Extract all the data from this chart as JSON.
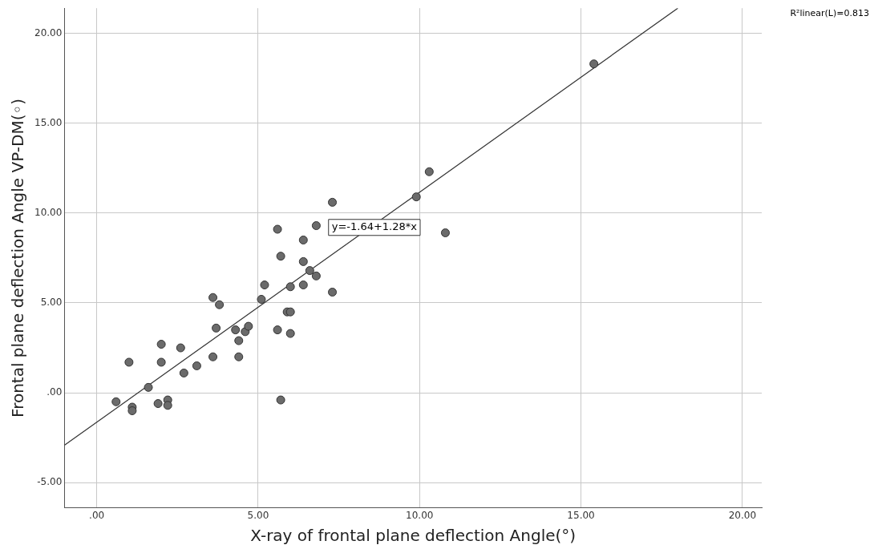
{
  "chart_data": {
    "type": "scatter",
    "xlabel": "X-ray of frontal plane deflection Angle(°)",
    "ylabel": "Frontal plane deflection Angle VP-DM(◦)",
    "series": [
      {
        "color": "#6b6b6b",
        "x": [
          0.6,
          1.1,
          1.1,
          1.0,
          1.6,
          1.9,
          2.2,
          2.2,
          2.0,
          2.0,
          2.6,
          2.7,
          3.1,
          3.6,
          3.6,
          3.7,
          3.8,
          4.3,
          4.4,
          4.4,
          4.6,
          4.7,
          5.1,
          5.2,
          5.6,
          5.7,
          5.6,
          5.7,
          5.9,
          6.0,
          6.0,
          6.0,
          6.4,
          6.4,
          6.4,
          6.6,
          6.8,
          6.8,
          7.3,
          7.3,
          9.9,
          10.3,
          10.8,
          15.4
        ],
        "values": [
          -0.5,
          -0.8,
          -1.0,
          1.7,
          0.3,
          -0.6,
          -0.4,
          -0.7,
          2.7,
          1.7,
          2.5,
          1.1,
          1.5,
          5.3,
          2.0,
          3.6,
          4.9,
          3.5,
          2.9,
          2.0,
          3.4,
          3.7,
          5.2,
          6.0,
          9.1,
          7.6,
          3.5,
          -0.4,
          4.5,
          4.5,
          5.9,
          3.3,
          8.5,
          7.3,
          6.0,
          6.8,
          9.3,
          6.5,
          5.6,
          10.6,
          10.9,
          12.3,
          8.9,
          18.3
        ]
      },
      {
        "type": "line",
        "marker": "none",
        "color": "#333333",
        "x": [
          -1,
          18.0
        ],
        "values": [
          -2.92,
          21.4
        ]
      }
    ],
    "xlim": [
      -1,
      20.6
    ],
    "ylim": [
      -6.4,
      21.4
    ],
    "xticks": [
      {
        "value": 0,
        "label": ".00"
      },
      {
        "value": 5,
        "label": "5.00"
      },
      {
        "value": 10,
        "label": "10.00"
      },
      {
        "value": 15,
        "label": "15.00"
      },
      {
        "value": 20,
        "label": "20.00"
      }
    ],
    "yticks": [
      {
        "value": -5,
        "label": "-5.00"
      },
      {
        "value": 0,
        "label": ".00"
      },
      {
        "value": 5,
        "label": "5.00"
      },
      {
        "value": 10,
        "label": "10.00"
      },
      {
        "value": 15,
        "label": "15.00"
      },
      {
        "value": 20,
        "label": "20.00"
      }
    ],
    "grid": true,
    "marker": "circle",
    "annotations": [
      {
        "text": "y=-1.64+1.28*x",
        "x": 8.6,
        "y": 9.2
      },
      "R²linear(L)=0.813"
    ]
  }
}
